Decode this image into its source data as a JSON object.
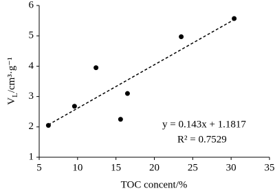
{
  "chart_data": {
    "type": "scatter",
    "x_label": "TOC concent/%",
    "y_label": {
      "main": "V",
      "sub": "L",
      "rest": "/cm³·g⁻¹"
    },
    "annotations": [
      "y = 0.143x + 1.1817",
      "R² = 0.7529"
    ],
    "series": [
      {
        "name": "samples",
        "color": "#000000",
        "x": [
          6.2,
          9.6,
          12.4,
          15.6,
          16.5,
          23.5,
          30.4
        ],
        "values": [
          2.05,
          2.68,
          3.95,
          2.25,
          3.1,
          4.97,
          5.57
        ]
      },
      {
        "name": "trend",
        "color": "#000000",
        "style": "dashed",
        "x": [
          6.2,
          30.5
        ],
        "values": [
          2.07,
          5.55
        ]
      }
    ],
    "xlim": [
      5,
      35
    ],
    "xticks": [
      5,
      10,
      15,
      20,
      25,
      30,
      35
    ],
    "ylim": [
      1,
      6
    ],
    "yticks": [
      1,
      2,
      3,
      4,
      5,
      6
    ]
  }
}
